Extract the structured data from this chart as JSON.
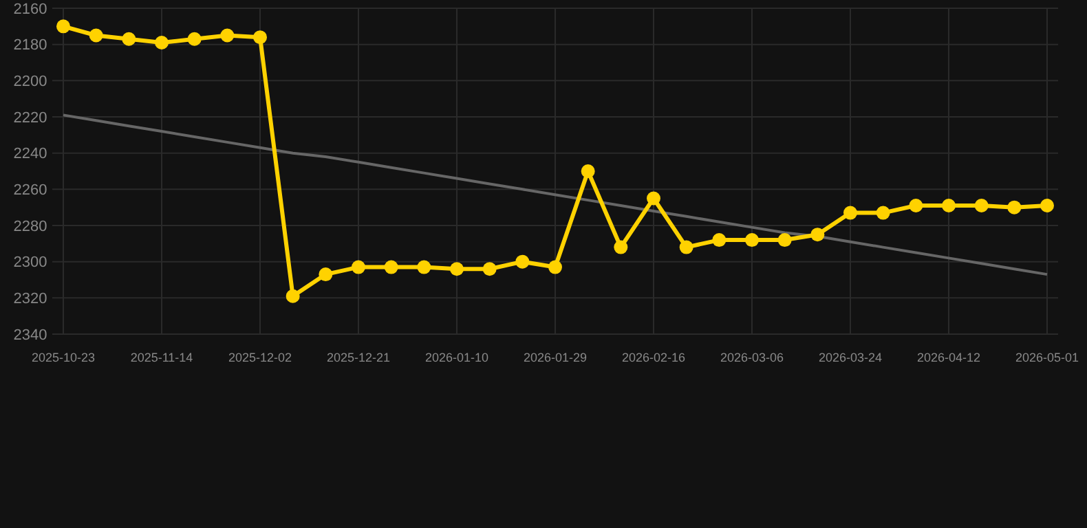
{
  "chart_data": {
    "type": "line",
    "categories": [
      "2025-10-23",
      null,
      null,
      "2025-11-14",
      null,
      null,
      "2025-12-02",
      null,
      null,
      "2025-12-21",
      null,
      null,
      "2026-01-10",
      null,
      null,
      "2026-01-29",
      null,
      null,
      "2026-02-16",
      null,
      null,
      "2026-03-06",
      null,
      null,
      "2026-03-24",
      null,
      null,
      "2026-04-12",
      null,
      null,
      "2026-05-01"
    ],
    "series": [
      {
        "color": "#ffd200",
        "marker": "circle",
        "values": [
          2170,
          2175,
          2177,
          2179,
          2177,
          2175,
          2176,
          2319,
          2307,
          2303,
          2303,
          2303,
          2304,
          2304,
          2300,
          2303,
          2250,
          2292,
          2265,
          2292,
          2288,
          2288,
          2288,
          2285,
          2273,
          2273,
          2269,
          2269,
          2269,
          2270,
          2269
        ]
      },
      {
        "type": "line",
        "color": "#666666",
        "marker": "none",
        "values": [
          2219,
          2222,
          2225,
          2228,
          2231,
          2234,
          2237,
          2240,
          2242,
          2245,
          2248,
          2251,
          2254,
          2257,
          2260,
          2263,
          2266,
          2269,
          2272,
          2275,
          2278,
          2281,
          2284,
          2286,
          2289,
          2292,
          2295,
          2298,
          2301,
          2304,
          2307
        ]
      }
    ],
    "ylim": [
      2340,
      2160
    ],
    "yticks": [
      2160,
      2180,
      2200,
      2220,
      2240,
      2260,
      2280,
      2300,
      2320,
      2340
    ],
    "grid": true
  }
}
